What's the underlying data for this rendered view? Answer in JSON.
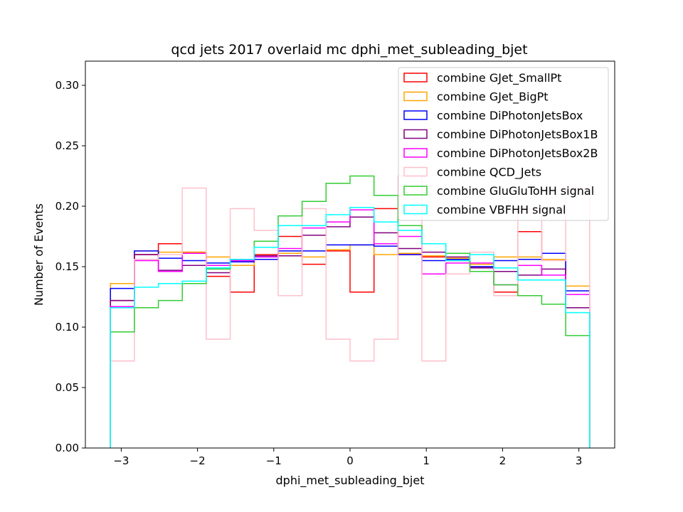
{
  "chart_data": {
    "type": "step-histogram",
    "title": "qcd jets 2017 overlaid mc dphi_met_subleading_bjet",
    "xlabel": "dphi_met_subleading_bjet",
    "ylabel": "Number of Events",
    "xlim": [
      -3.47,
      3.47
    ],
    "ylim": [
      0,
      0.32
    ],
    "xticks": [
      -3,
      -2,
      -1,
      0,
      1,
      2,
      3
    ],
    "xtick_labels": [
      "−3",
      "−2",
      "−1",
      "0",
      "1",
      "2",
      "3"
    ],
    "yticks": [
      0.0,
      0.05,
      0.1,
      0.15,
      0.2,
      0.25,
      0.3
    ],
    "ytick_labels": [
      "0.00",
      "0.05",
      "0.10",
      "0.15",
      "0.20",
      "0.25",
      "0.30"
    ],
    "grid": false,
    "legend_position": "top-right",
    "bin_edges": [
      -3.1416,
      -2.8274,
      -2.5133,
      -2.1991,
      -1.885,
      -1.5708,
      -1.2566,
      -0.9425,
      -0.6283,
      -0.3142,
      0.0,
      0.3142,
      0.6283,
      0.9425,
      1.2566,
      1.5708,
      1.885,
      2.1991,
      2.5133,
      2.8274,
      3.1416
    ],
    "series": [
      {
        "name": "combine GJet_SmallPt",
        "color": "#ff0000",
        "values": [
          0.122,
          0.16,
          0.169,
          0.162,
          0.142,
          0.129,
          0.16,
          0.175,
          0.152,
          0.163,
          0.129,
          0.198,
          0.16,
          0.158,
          0.155,
          0.15,
          0.129,
          0.179,
          0.156,
          0.116
        ]
      },
      {
        "name": "combine GJet_BigPt",
        "color": "#ffa500",
        "values": [
          0.136,
          0.163,
          0.162,
          0.162,
          0.158,
          0.151,
          0.159,
          0.161,
          0.158,
          0.164,
          0.168,
          0.16,
          0.161,
          0.159,
          0.157,
          0.152,
          0.158,
          0.158,
          0.156,
          0.134
        ]
      },
      {
        "name": "combine DiPhotonJetsBox",
        "color": "#0000ff",
        "values": [
          0.132,
          0.163,
          0.157,
          0.155,
          0.153,
          0.154,
          0.156,
          0.163,
          0.163,
          0.168,
          0.168,
          0.167,
          0.16,
          0.155,
          0.156,
          0.15,
          0.155,
          0.156,
          0.161,
          0.13
        ]
      },
      {
        "name": "combine DiPhotonJetsBox1B",
        "color": "#800080",
        "values": [
          0.122,
          0.16,
          0.147,
          0.151,
          0.145,
          0.155,
          0.159,
          0.159,
          0.176,
          0.183,
          0.191,
          0.178,
          0.165,
          0.162,
          0.158,
          0.149,
          0.146,
          0.143,
          0.148,
          0.116
        ]
      },
      {
        "name": "combine DiPhotonJetsBox2B",
        "color": "#ff00ff",
        "values": [
          0.117,
          0.155,
          0.146,
          0.161,
          0.151,
          0.155,
          0.158,
          0.165,
          0.182,
          0.187,
          0.197,
          0.169,
          0.175,
          0.144,
          0.153,
          0.153,
          0.135,
          0.151,
          0.143,
          0.127
        ]
      },
      {
        "name": "combine QCD_Jets",
        "color": "#ffc0cb",
        "values": [
          0.072,
          0.156,
          0.16,
          0.215,
          0.09,
          0.198,
          0.18,
          0.126,
          0.198,
          0.09,
          0.072,
          0.09,
          0.225,
          0.072,
          0.144,
          0.162,
          0.126,
          0.198,
          0.155,
          0.215
        ]
      },
      {
        "name": "combine GluGluToHH signal",
        "color": "#33cc33",
        "values": [
          0.096,
          0.116,
          0.122,
          0.136,
          0.148,
          0.156,
          0.171,
          0.192,
          0.204,
          0.219,
          0.225,
          0.209,
          0.184,
          0.169,
          0.161,
          0.146,
          0.135,
          0.126,
          0.119,
          0.093
        ]
      },
      {
        "name": "combine VBFHH signal",
        "color": "#00ffff",
        "values": [
          0.116,
          0.133,
          0.136,
          0.138,
          0.149,
          0.156,
          0.166,
          0.184,
          0.184,
          0.193,
          0.199,
          0.187,
          0.18,
          0.169,
          0.155,
          0.16,
          0.149,
          0.139,
          0.139,
          0.112
        ]
      }
    ]
  }
}
